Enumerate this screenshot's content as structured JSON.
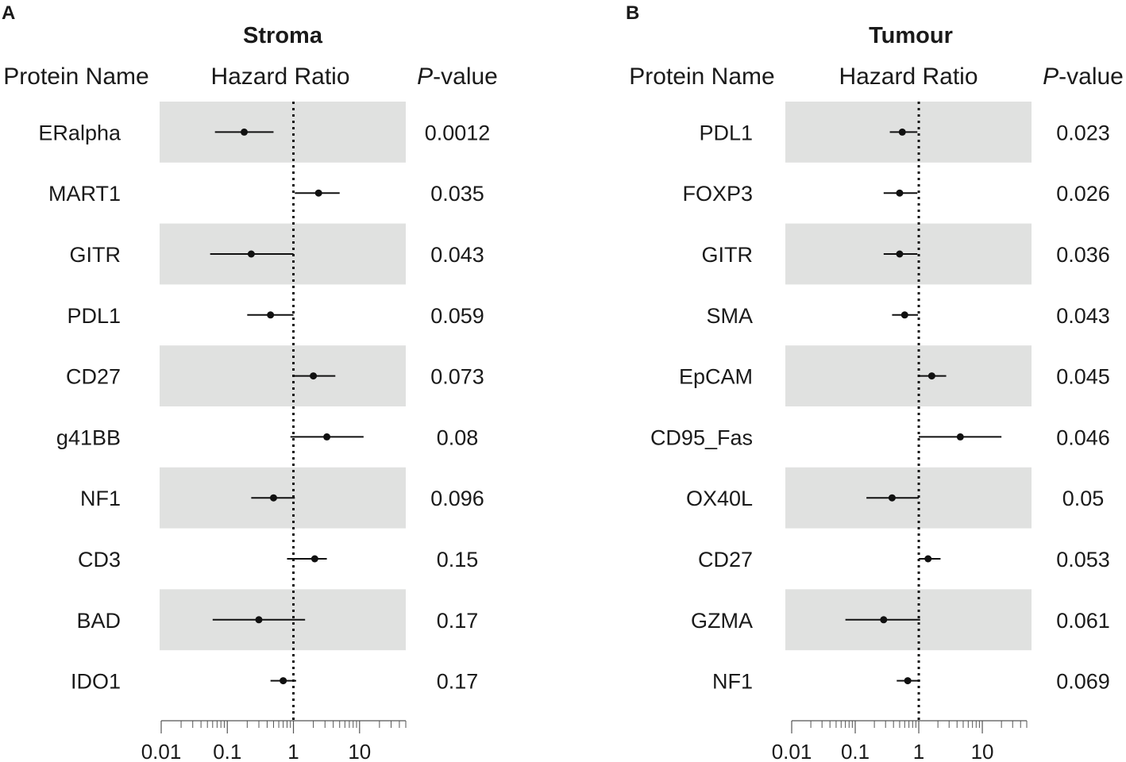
{
  "chart_data": [
    {
      "type": "forest",
      "panel_label": "A",
      "title": "Stroma",
      "headers": {
        "name": "Protein Name",
        "effect": "Hazard Ratio",
        "p_italic": "P",
        "p_rest": "-value"
      },
      "xscale": "log",
      "xlim": [
        0.01,
        50
      ],
      "reference_line": 1,
      "xticks": [
        {
          "value": 0.01,
          "label": "0.01"
        },
        {
          "value": 0.1,
          "label": "0.1"
        },
        {
          "value": 1,
          "label": "1"
        },
        {
          "value": 10,
          "label": "10"
        }
      ],
      "rows": [
        {
          "name": "ERalpha",
          "hr": 0.18,
          "lo": 0.065,
          "hi": 0.5,
          "p": "0.0012",
          "shaded": true
        },
        {
          "name": "MART1",
          "hr": 2.4,
          "lo": 1.05,
          "hi": 5.0,
          "p": "0.035",
          "shaded": false
        },
        {
          "name": "GITR",
          "hr": 0.23,
          "lo": 0.055,
          "hi": 1.0,
          "p": "0.043",
          "shaded": true
        },
        {
          "name": "PDL1",
          "hr": 0.45,
          "lo": 0.2,
          "hi": 1.0,
          "p": "0.059",
          "shaded": false
        },
        {
          "name": "CD27",
          "hr": 2.0,
          "lo": 1.0,
          "hi": 4.3,
          "p": "0.073",
          "shaded": true
        },
        {
          "name": "g41BB",
          "hr": 3.2,
          "lo": 0.9,
          "hi": 11.5,
          "p": "0.08",
          "shaded": false
        },
        {
          "name": "NF1",
          "hr": 0.5,
          "lo": 0.23,
          "hi": 1.05,
          "p": "0.096",
          "shaded": true
        },
        {
          "name": "CD3",
          "hr": 2.1,
          "lo": 0.8,
          "hi": 3.2,
          "p": "0.15",
          "shaded": false
        },
        {
          "name": "BAD",
          "hr": 0.3,
          "lo": 0.06,
          "hi": 1.5,
          "p": "0.17",
          "shaded": true
        },
        {
          "name": "IDO1",
          "hr": 0.7,
          "lo": 0.45,
          "hi": 1.1,
          "p": "0.17",
          "shaded": false
        }
      ]
    },
    {
      "type": "forest",
      "panel_label": "B",
      "title": "Tumour",
      "headers": {
        "name": "Protein Name",
        "effect": "Hazard Ratio",
        "p_italic": "P",
        "p_rest": "-value"
      },
      "xscale": "log",
      "xlim": [
        0.01,
        50
      ],
      "reference_line": 1,
      "xticks": [
        {
          "value": 0.01,
          "label": "0.01"
        },
        {
          "value": 0.1,
          "label": "0.1"
        },
        {
          "value": 1,
          "label": "1"
        },
        {
          "value": 10,
          "label": "10"
        }
      ],
      "rows": [
        {
          "name": "PDL1",
          "hr": 0.55,
          "lo": 0.35,
          "hi": 0.95,
          "p": "0.023",
          "shaded": true
        },
        {
          "name": "FOXP3",
          "hr": 0.5,
          "lo": 0.28,
          "hi": 0.95,
          "p": "0.026",
          "shaded": false
        },
        {
          "name": "GITR",
          "hr": 0.5,
          "lo": 0.28,
          "hi": 0.95,
          "p": "0.036",
          "shaded": true
        },
        {
          "name": "SMA",
          "hr": 0.6,
          "lo": 0.38,
          "hi": 0.97,
          "p": "0.043",
          "shaded": false
        },
        {
          "name": "EpCAM",
          "hr": 1.6,
          "lo": 1.0,
          "hi": 2.7,
          "p": "0.045",
          "shaded": true
        },
        {
          "name": "CD95_Fas",
          "hr": 4.5,
          "lo": 1.0,
          "hi": 20,
          "p": "0.046",
          "shaded": false
        },
        {
          "name": "OX40L",
          "hr": 0.38,
          "lo": 0.15,
          "hi": 1.0,
          "p": "0.05",
          "shaded": true
        },
        {
          "name": "CD27",
          "hr": 1.4,
          "lo": 1.0,
          "hi": 2.2,
          "p": "0.053",
          "shaded": false
        },
        {
          "name": "GZMA",
          "hr": 0.28,
          "lo": 0.07,
          "hi": 1.05,
          "p": "0.061",
          "shaded": true
        },
        {
          "name": "NF1",
          "hr": 0.67,
          "lo": 0.45,
          "hi": 1.05,
          "p": "0.069",
          "shaded": false
        }
      ]
    }
  ],
  "colors": {
    "shade": "#e0e1e0",
    "ink": "#111111"
  }
}
